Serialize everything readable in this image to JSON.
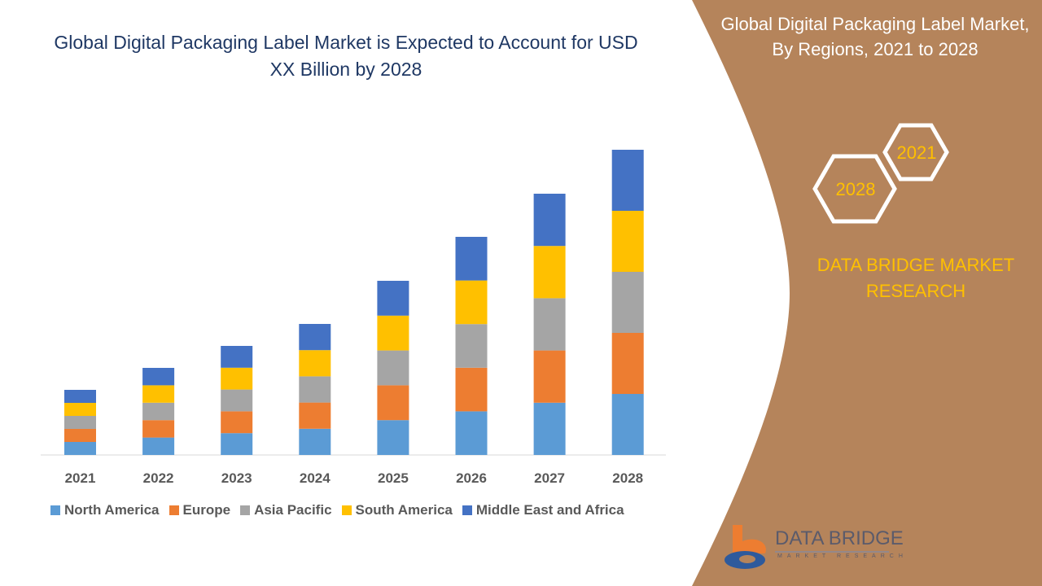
{
  "header": {
    "title": "Global Digital Packaging Label Market is Expected to Account for USD XX Billion by 2028",
    "side_title": "Global Digital Packaging Label Market, By Regions, 2021 to 2028",
    "hex_labels": [
      "2021",
      "2028"
    ],
    "brand": "DATA BRIDGE MARKET RESEARCH",
    "logo_text": "DATA BRIDGE",
    "logo_subtext": "MARKET RESEARCH"
  },
  "colors": {
    "panel": "#b5845b",
    "title": "#1f3864",
    "brand": "#ffc000"
  },
  "chart_data": {
    "type": "bar",
    "stacked": true,
    "title": "",
    "xlabel": "",
    "ylabel": "",
    "grid": false,
    "legend_position": "bottom",
    "categories": [
      "2021",
      "2022",
      "2023",
      "2024",
      "2025",
      "2026",
      "2027",
      "2028"
    ],
    "series": [
      {
        "name": "North America",
        "color": "#5b9bd5",
        "values": [
          16,
          21.4,
          26.8,
          32.2,
          42.8,
          53.6,
          64.2,
          75
        ]
      },
      {
        "name": "Europe",
        "color": "#ed7d31",
        "values": [
          16,
          21.4,
          26.8,
          32.2,
          42.8,
          53.6,
          64.2,
          75
        ]
      },
      {
        "name": "Asia Pacific",
        "color": "#a5a5a5",
        "values": [
          16,
          21.4,
          26.8,
          32.2,
          42.8,
          53.6,
          64.2,
          75
        ]
      },
      {
        "name": "South America",
        "color": "#ffc000",
        "values": [
          16,
          21.4,
          26.8,
          32.2,
          42.8,
          53.6,
          64.2,
          75
        ]
      },
      {
        "name": "Middle East and Africa",
        "color": "#4472c4",
        "values": [
          16,
          21.4,
          26.8,
          32.2,
          42.8,
          53.6,
          64.2,
          75
        ]
      }
    ]
  }
}
